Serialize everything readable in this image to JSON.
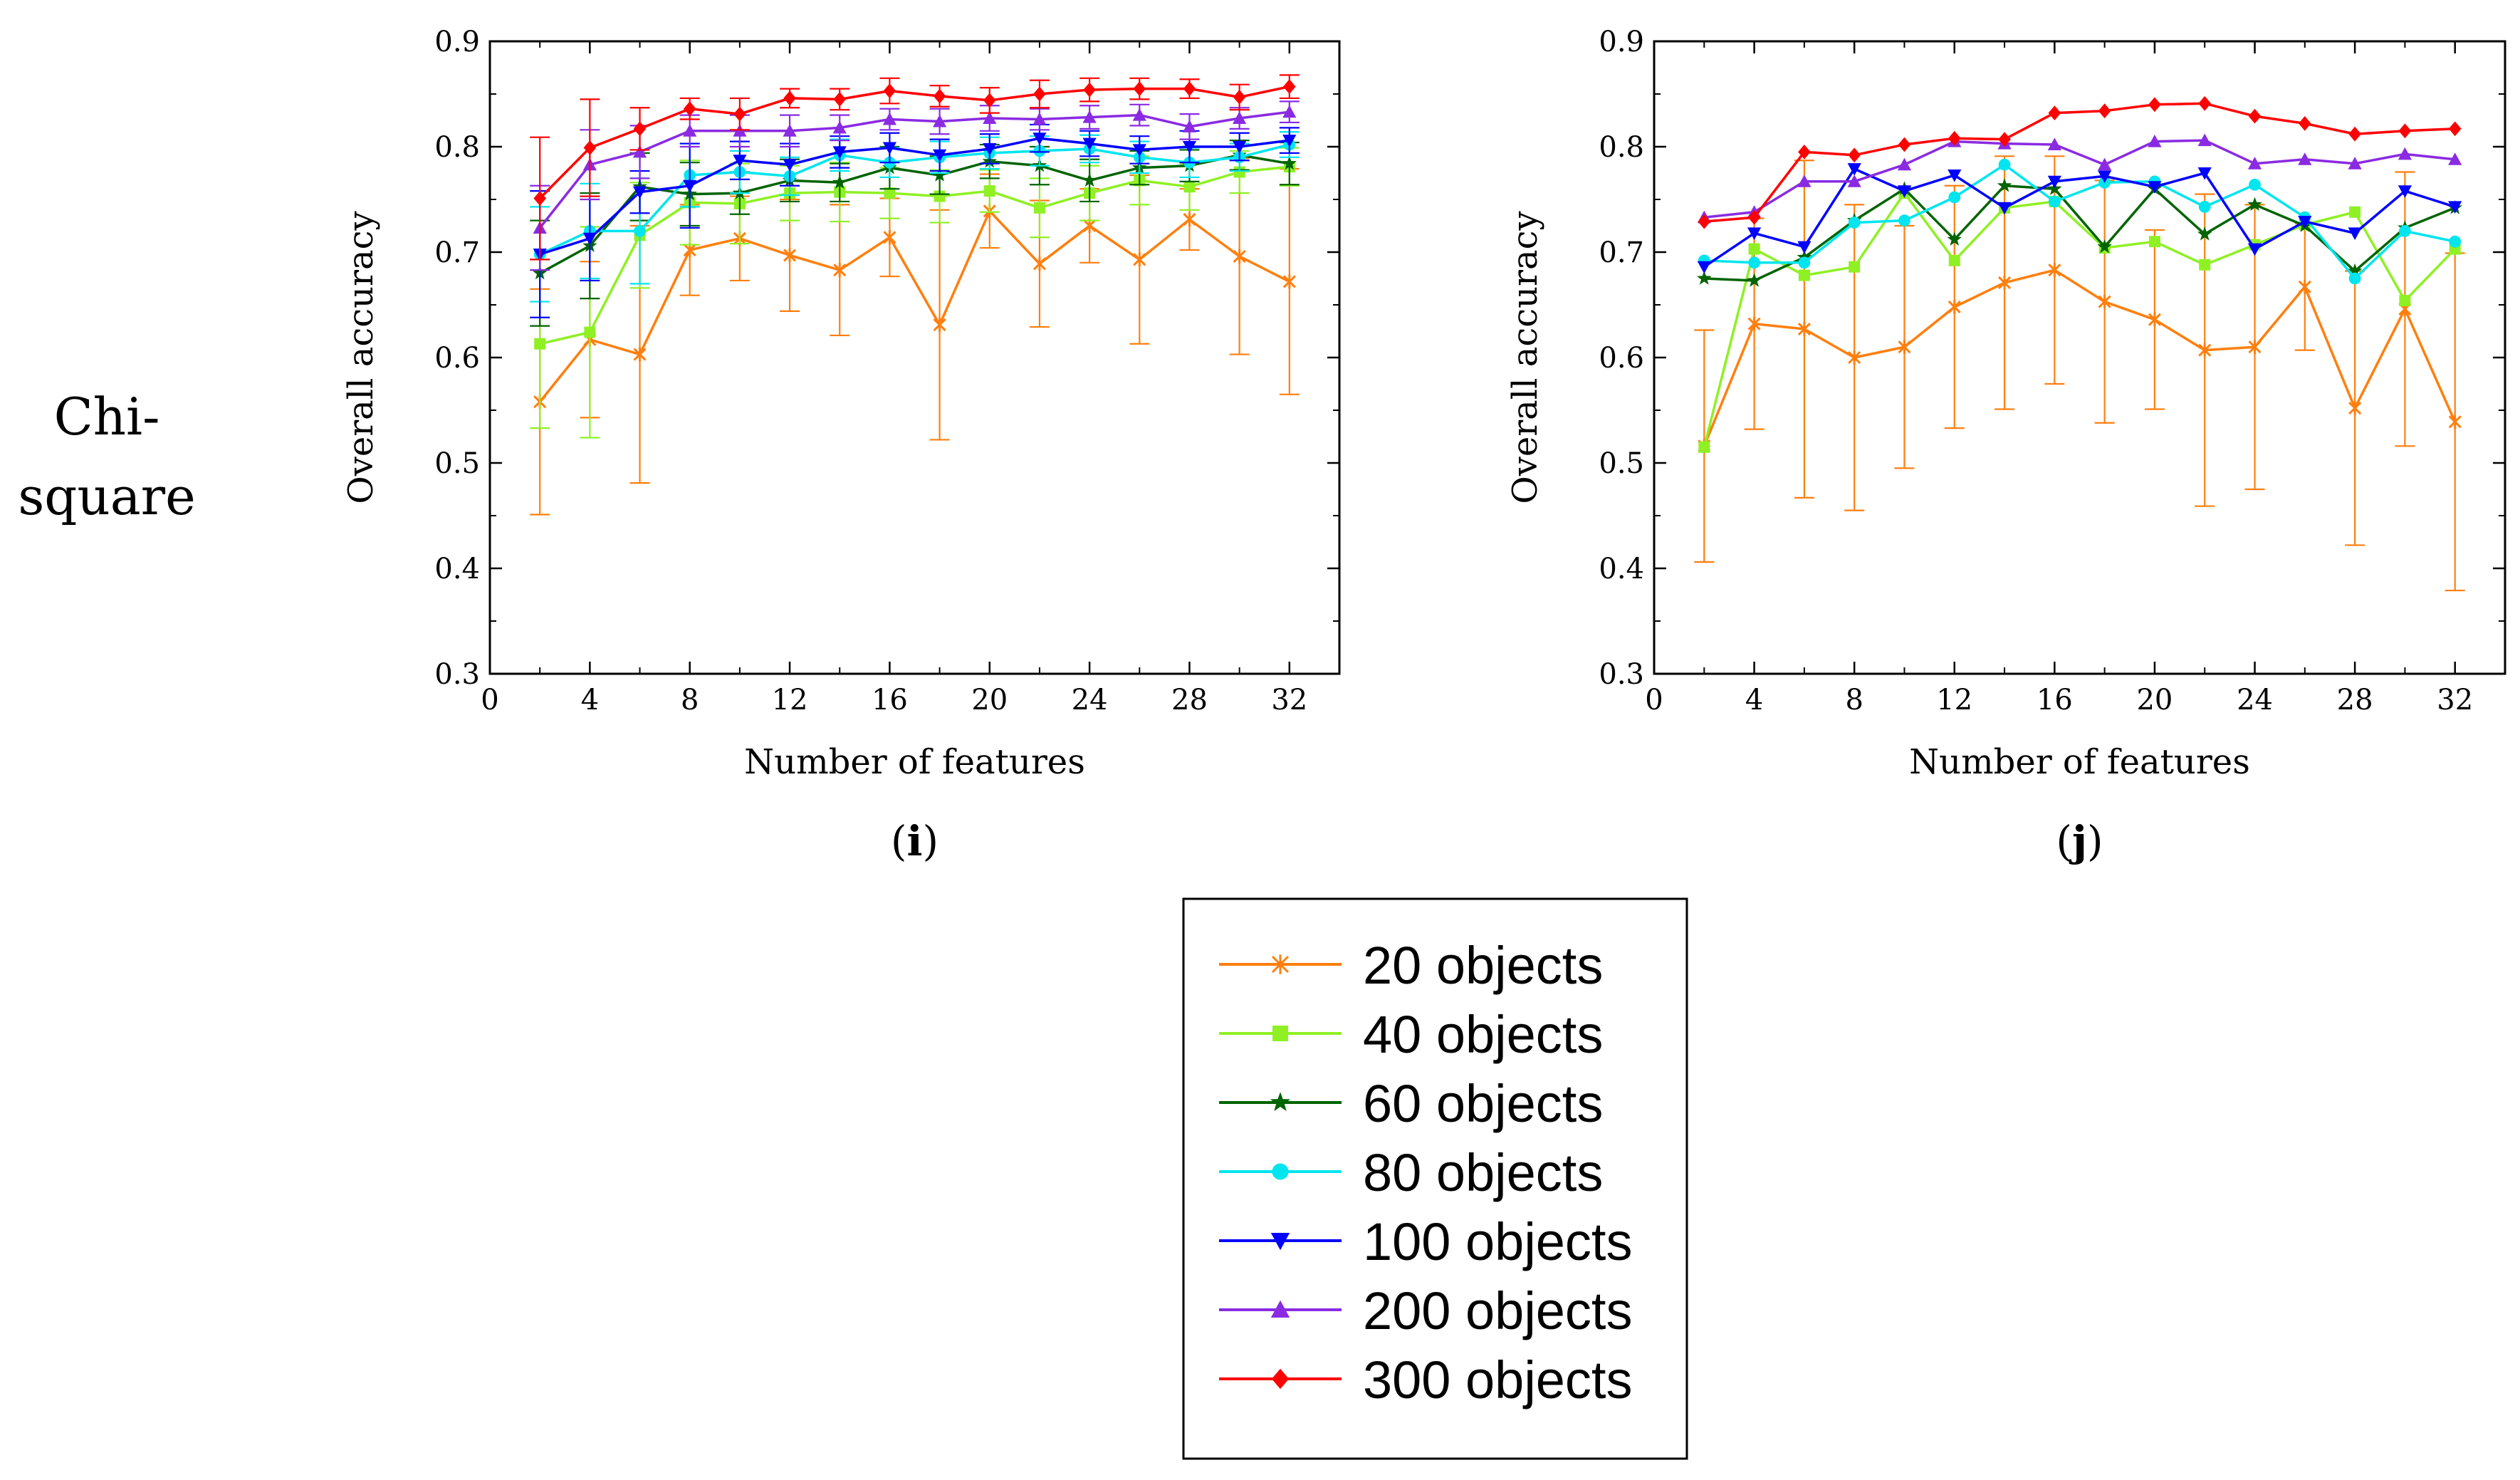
{
  "row_label": [
    "Chi-",
    "square"
  ],
  "legend": {
    "entries": [
      {
        "label": "20 objects",
        "color": "#ff7f0e",
        "marker": "x-cross"
      },
      {
        "label": "40 objects",
        "color": "#8ff024",
        "marker": "square"
      },
      {
        "label": "60 objects",
        "color": "#006400",
        "marker": "star"
      },
      {
        "label": "80 objects",
        "color": "#00e5ee",
        "marker": "circle"
      },
      {
        "label": "100 objects",
        "color": "#0000ff",
        "marker": "triangle-down"
      },
      {
        "label": "200 objects",
        "color": "#8a2be2",
        "marker": "triangle-up"
      },
      {
        "label": "300 objects",
        "color": "#ff0000",
        "marker": "diamond"
      }
    ]
  },
  "chart_data": [
    {
      "type": "line",
      "panel_label": "i",
      "xlabel": "Number of features",
      "ylabel": "Overall accuracy",
      "xlim": [
        0,
        34
      ],
      "ylim": [
        0.3,
        0.9
      ],
      "xticks": [
        0,
        4,
        8,
        12,
        16,
        20,
        24,
        28,
        32
      ],
      "yticks": [
        0.3,
        0.4,
        0.5,
        0.6,
        0.7,
        0.8,
        0.9
      ],
      "x": [
        2,
        4,
        6,
        8,
        10,
        12,
        14,
        16,
        18,
        20,
        22,
        24,
        26,
        28,
        30,
        32
      ],
      "series": [
        {
          "name": "20 objects",
          "values": [
            0.558,
            0.617,
            0.603,
            0.702,
            0.713,
            0.697,
            0.683,
            0.714,
            0.631,
            0.739,
            0.689,
            0.725,
            0.693,
            0.731,
            0.696,
            0.672
          ],
          "errors": [
            0.107,
            0.074,
            0.122,
            0.043,
            0.04,
            0.053,
            0.062,
            0.037,
            0.109,
            0.035,
            0.06,
            0.035,
            0.08,
            0.029,
            0.093,
            0.107
          ]
        },
        {
          "name": "40 objects",
          "values": [
            0.613,
            0.624,
            0.716,
            0.747,
            0.746,
            0.756,
            0.757,
            0.756,
            0.753,
            0.758,
            0.742,
            0.756,
            0.768,
            0.762,
            0.776,
            0.781
          ],
          "errors": [
            0.08,
            0.1,
            0.05,
            0.04,
            0.038,
            0.026,
            0.028,
            0.024,
            0.025,
            0.02,
            0.028,
            0.026,
            0.023,
            0.022,
            0.02,
            0.018
          ]
        },
        {
          "name": "60 objects",
          "values": [
            0.68,
            0.706,
            0.762,
            0.755,
            0.756,
            0.768,
            0.766,
            0.78,
            0.773,
            0.786,
            0.782,
            0.768,
            0.78,
            0.782,
            0.792,
            0.784
          ],
          "errors": [
            0.05,
            0.05,
            0.032,
            0.03,
            0.02,
            0.02,
            0.018,
            0.02,
            0.018,
            0.016,
            0.018,
            0.02,
            0.016,
            0.015,
            0.014,
            0.02
          ]
        },
        {
          "name": "80 objects",
          "values": [
            0.698,
            0.72,
            0.72,
            0.773,
            0.776,
            0.772,
            0.792,
            0.785,
            0.79,
            0.794,
            0.796,
            0.798,
            0.79,
            0.785,
            0.79,
            0.802
          ],
          "errors": [
            0.045,
            0.045,
            0.05,
            0.03,
            0.02,
            0.018,
            0.015,
            0.014,
            0.015,
            0.015,
            0.014,
            0.013,
            0.015,
            0.014,
            0.013,
            0.012
          ]
        },
        {
          "name": "100 objects",
          "values": [
            0.698,
            0.713,
            0.757,
            0.763,
            0.787,
            0.783,
            0.795,
            0.799,
            0.792,
            0.798,
            0.808,
            0.803,
            0.797,
            0.8,
            0.8,
            0.806
          ],
          "errors": [
            0.06,
            0.04,
            0.02,
            0.04,
            0.018,
            0.02,
            0.015,
            0.014,
            0.015,
            0.014,
            0.013,
            0.012,
            0.013,
            0.015,
            0.013,
            0.012
          ]
        },
        {
          "name": "200 objects",
          "values": [
            0.723,
            0.783,
            0.795,
            0.815,
            0.815,
            0.815,
            0.818,
            0.826,
            0.824,
            0.827,
            0.826,
            0.828,
            0.83,
            0.819,
            0.827,
            0.833
          ],
          "errors": [
            0.04,
            0.033,
            0.025,
            0.015,
            0.015,
            0.015,
            0.012,
            0.01,
            0.012,
            0.012,
            0.01,
            0.011,
            0.01,
            0.012,
            0.01,
            0.01
          ]
        },
        {
          "name": "300 objects",
          "values": [
            0.751,
            0.799,
            0.817,
            0.836,
            0.831,
            0.846,
            0.845,
            0.853,
            0.848,
            0.844,
            0.85,
            0.854,
            0.855,
            0.855,
            0.847,
            0.857
          ],
          "errors": [
            0.058,
            0.046,
            0.02,
            0.01,
            0.015,
            0.009,
            0.01,
            0.012,
            0.01,
            0.012,
            0.013,
            0.011,
            0.01,
            0.009,
            0.012,
            0.011
          ]
        }
      ]
    },
    {
      "type": "line",
      "panel_label": "j",
      "xlabel": "Number of features",
      "ylabel": "Overall accuracy",
      "xlim": [
        0,
        34
      ],
      "ylim": [
        0.3,
        0.9
      ],
      "xticks": [
        0,
        4,
        8,
        12,
        16,
        20,
        24,
        28,
        32
      ],
      "yticks": [
        0.3,
        0.4,
        0.5,
        0.6,
        0.7,
        0.8,
        0.9
      ],
      "x": [
        2,
        4,
        6,
        8,
        10,
        12,
        14,
        16,
        18,
        20,
        22,
        24,
        26,
        28,
        30,
        32
      ],
      "series": [
        {
          "name": "20 objects",
          "values": [
            0.516,
            0.632,
            0.627,
            0.6,
            0.61,
            0.648,
            0.671,
            0.683,
            0.653,
            0.636,
            0.607,
            0.61,
            0.667,
            0.552,
            0.646,
            0.539
          ],
          "errors": [
            0.11,
            0.1,
            0.16,
            0.145,
            0.115,
            0.115,
            0.12,
            0.108,
            0.115,
            0.085,
            0.148,
            0.135,
            0.06,
            0.13,
            0.13,
            0.16
          ]
        },
        {
          "name": "40 objects",
          "values": [
            0.515,
            0.703,
            0.678,
            0.686,
            0.756,
            0.692,
            0.742,
            0.748,
            0.704,
            0.71,
            0.688,
            0.707,
            0.726,
            0.738,
            0.654,
            0.703
          ]
        },
        {
          "name": "60 objects",
          "values": [
            0.675,
            0.673,
            0.695,
            0.73,
            0.76,
            0.712,
            0.763,
            0.76,
            0.705,
            0.76,
            0.717,
            0.745,
            0.725,
            0.682,
            0.723,
            0.742
          ]
        },
        {
          "name": "80 objects",
          "values": [
            0.692,
            0.69,
            0.69,
            0.728,
            0.73,
            0.752,
            0.783,
            0.748,
            0.766,
            0.767,
            0.743,
            0.764,
            0.733,
            0.675,
            0.72,
            0.71
          ]
        },
        {
          "name": "100 objects",
          "values": [
            0.686,
            0.718,
            0.705,
            0.779,
            0.758,
            0.773,
            0.742,
            0.767,
            0.772,
            0.762,
            0.775,
            0.703,
            0.729,
            0.718,
            0.758,
            0.743
          ]
        },
        {
          "name": "200 objects",
          "values": [
            0.733,
            0.738,
            0.767,
            0.767,
            0.783,
            0.805,
            0.803,
            0.802,
            0.783,
            0.805,
            0.806,
            0.784,
            0.788,
            0.784,
            0.793,
            0.788
          ]
        },
        {
          "name": "300 objects",
          "values": [
            0.729,
            0.733,
            0.795,
            0.792,
            0.802,
            0.808,
            0.807,
            0.832,
            0.834,
            0.84,
            0.841,
            0.829,
            0.822,
            0.812,
            0.815,
            0.817
          ]
        }
      ]
    }
  ]
}
